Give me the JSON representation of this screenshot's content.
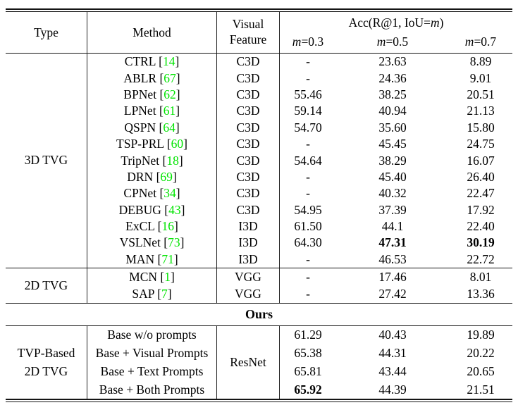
{
  "colors": {
    "citation_green": "#00e400"
  },
  "header": {
    "type": "Type",
    "method": "Method",
    "feature_line1": "Visual",
    "feature_line2": "Feature",
    "acc_prefix": "Acc(R@1, IoU=",
    "acc_var": "m",
    "acc_suffix": ")",
    "subcols": [
      {
        "var": "m",
        "rest": "=0.3"
      },
      {
        "var": "m",
        "rest": "=0.5"
      },
      {
        "var": "m",
        "rest": "=0.7"
      }
    ]
  },
  "ours_label": "Ours",
  "groups": [
    {
      "type_lines": [
        "3D TVG"
      ],
      "rows": [
        {
          "method": "CTRL",
          "cite": "14",
          "feature": "C3D",
          "values": [
            "-",
            "23.63",
            "8.89"
          ],
          "bold": [
            false,
            false,
            false
          ]
        },
        {
          "method": "ABLR",
          "cite": "67",
          "feature": "C3D",
          "values": [
            "-",
            "24.36",
            "9.01"
          ],
          "bold": [
            false,
            false,
            false
          ]
        },
        {
          "method": "BPNet",
          "cite": "62",
          "feature": "C3D",
          "values": [
            "55.46",
            "38.25",
            "20.51"
          ],
          "bold": [
            false,
            false,
            false
          ]
        },
        {
          "method": "LPNet",
          "cite": "61",
          "feature": "C3D",
          "values": [
            "59.14",
            "40.94",
            "21.13"
          ],
          "bold": [
            false,
            false,
            false
          ]
        },
        {
          "method": "QSPN",
          "cite": "64",
          "feature": "C3D",
          "values": [
            "54.70",
            "35.60",
            "15.80"
          ],
          "bold": [
            false,
            false,
            false
          ]
        },
        {
          "method": "TSP-PRL",
          "cite": "60",
          "feature": "C3D",
          "values": [
            "-",
            "45.45",
            "24.75"
          ],
          "bold": [
            false,
            false,
            false
          ]
        },
        {
          "method": "TripNet",
          "cite": "18",
          "feature": "C3D",
          "values": [
            "54.64",
            "38.29",
            "16.07"
          ],
          "bold": [
            false,
            false,
            false
          ]
        },
        {
          "method": "DRN",
          "cite": "69",
          "feature": "C3D",
          "values": [
            "-",
            "45.40",
            "26.40"
          ],
          "bold": [
            false,
            false,
            false
          ]
        },
        {
          "method": "CPNet",
          "cite": "34",
          "feature": "C3D",
          "values": [
            "-",
            "40.32",
            "22.47"
          ],
          "bold": [
            false,
            false,
            false
          ]
        },
        {
          "method": "DEBUG",
          "cite": "43",
          "feature": "C3D",
          "values": [
            "54.95",
            "37.39",
            "17.92"
          ],
          "bold": [
            false,
            false,
            false
          ]
        },
        {
          "method": "ExCL",
          "cite": "16",
          "feature": "I3D",
          "values": [
            "61.50",
            "44.1",
            "22.40"
          ],
          "bold": [
            false,
            false,
            false
          ]
        },
        {
          "method": "VSLNet",
          "cite": "73",
          "feature": "I3D",
          "values": [
            "64.30",
            "47.31",
            "30.19"
          ],
          "bold": [
            false,
            true,
            true
          ]
        },
        {
          "method": "MAN",
          "cite": "71",
          "feature": "I3D",
          "values": [
            "-",
            "46.53",
            "22.72"
          ],
          "bold": [
            false,
            false,
            false
          ]
        }
      ]
    },
    {
      "type_lines": [
        "2D TVG"
      ],
      "rows": [
        {
          "method": "MCN",
          "cite": "1",
          "feature": "VGG",
          "values": [
            "-",
            "17.46",
            "8.01"
          ],
          "bold": [
            false,
            false,
            false
          ]
        },
        {
          "method": "SAP",
          "cite": "7",
          "feature": "VGG",
          "values": [
            "-",
            "27.42",
            "13.36"
          ],
          "bold": [
            false,
            false,
            false
          ]
        }
      ]
    },
    {
      "type_lines": [
        "TVP-Based",
        "2D TVG"
      ],
      "feature_span": "ResNet",
      "rows": [
        {
          "method": "Base w/o prompts",
          "values": [
            "61.29",
            "40.43",
            "19.89"
          ],
          "bold": [
            false,
            false,
            false
          ]
        },
        {
          "method": "Base + Visual Prompts",
          "values": [
            "65.38",
            "44.31",
            "20.22"
          ],
          "bold": [
            false,
            false,
            false
          ]
        },
        {
          "method": "Base + Text Prompts",
          "values": [
            "65.81",
            "43.44",
            "20.65"
          ],
          "bold": [
            false,
            false,
            false
          ]
        },
        {
          "method": "Base + Both Prompts",
          "values": [
            "65.92",
            "44.39",
            "21.51"
          ],
          "bold": [
            true,
            false,
            false
          ]
        }
      ]
    }
  ]
}
